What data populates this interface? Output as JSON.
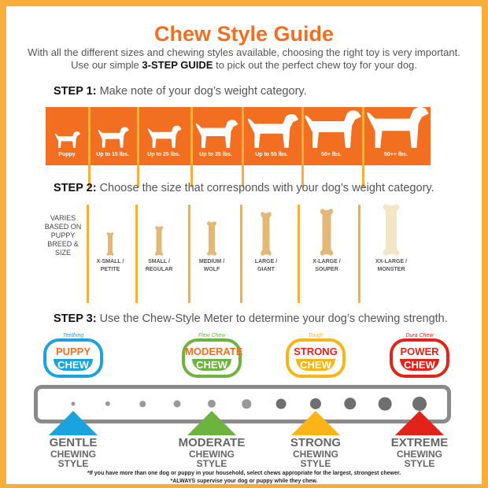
{
  "title": "Chew Style Guide",
  "intro": {
    "line1": "With all the different sizes and chewing styles available, choosing the right toy is very important.",
    "line2_pre": "Use our simple ",
    "line2_bold": "3-STEP GUIDE",
    "line2_post": " to pick out the perfect chew toy for your dog."
  },
  "step1": {
    "label": "STEP 1:",
    "text": "Make note of your dog’s weight category.",
    "weights": [
      "Puppy",
      "Up to 15 lbs.",
      "Up to 25 lbs.",
      "Up to 35 lbs.",
      "Up to 55 lbs.",
      "50+ lbs.",
      "50++ lbs."
    ]
  },
  "step2": {
    "label": "STEP 2:",
    "text": "Choose the size that corresponds with your dog’s weight category.",
    "varies": "VARIES BASED ON PUPPY BREED & SIZE",
    "sizes": [
      {
        "l1": "X-SMALL /",
        "l2": "PETITE"
      },
      {
        "l1": "SMALL /",
        "l2": "REGULAR"
      },
      {
        "l1": "MEDIUM /",
        "l2": "WOLF"
      },
      {
        "l1": "LARGE /",
        "l2": "GIANT"
      },
      {
        "l1": "X-LARGE /",
        "l2": "SOUPER"
      },
      {
        "l1": "XX-LARGE /",
        "l2": "MONSTER"
      }
    ]
  },
  "step3": {
    "label": "STEP 3:",
    "text": "Use the Chew-Style Meter to determine your dog’s chewing strength.",
    "badges": [
      {
        "tag": "Teething",
        "name": "PUPPY",
        "chew": "CHEW",
        "color": "#1aa3dc",
        "text": "#f26f21"
      },
      {
        "tag": "Flexi Chew",
        "name": "MODERATE",
        "chew": "CHEW",
        "color": "#6cb33f",
        "text": "#f26f21"
      },
      {
        "tag": "Tough",
        "name": "STRONG",
        "chew": "CHEW",
        "color": "#fbb415",
        "text": "#e2231a"
      },
      {
        "tag": "Dura Chew",
        "name": "POWER",
        "chew": "CHEW",
        "color": "#e2231a",
        "text": "#e2231a"
      }
    ],
    "styles": [
      {
        "a": "GENTLE",
        "b": "CHEWING",
        "c": "STYLE"
      },
      {
        "a": "MODERATE",
        "b": "CHEWING",
        "c": "STYLE"
      },
      {
        "a": "STRONG",
        "b": "CHEWING",
        "c": "STYLE"
      },
      {
        "a": "EXTREME",
        "b": "CHEWING",
        "c": "STYLE"
      }
    ]
  },
  "footnotes": [
    "*If you have more than one dog or puppy in your household, select chews appropriate for the largest, strongest chewer.",
    "*ALWAYS supervise your dog or puppy while they chew."
  ],
  "colors": {
    "brand": "#f26f21",
    "frame": "#f9ae3b"
  }
}
